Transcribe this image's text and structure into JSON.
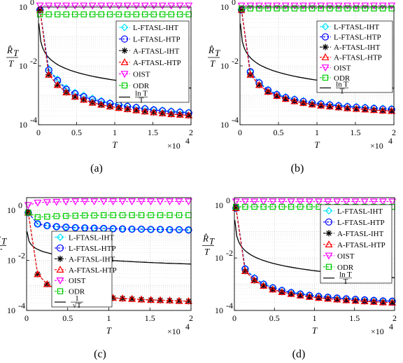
{
  "chart_data": [
    {
      "type": "line",
      "caption": "(a)",
      "xlabel": "T",
      "x_multiplier": "×10",
      "x_multiplier_exp": "4",
      "ylabel_top": "R̂",
      "ylabel_sub": "T",
      "ylabel_den": "T",
      "y_scale": "log",
      "xlim": [
        0,
        2
      ],
      "ylim_exp": [
        -4,
        0
      ],
      "xticks": [
        "0",
        "0.5",
        "1",
        "1.5",
        "2"
      ],
      "yticks": [
        {
          "base": "10",
          "exp": "0"
        },
        {
          "base": "10",
          "exp": "-2"
        },
        {
          "base": "10",
          "exp": "-4"
        }
      ],
      "grid": true,
      "legend": "top-right",
      "reference_label": {
        "num": "ln T",
        "den": "T"
      },
      "series": [
        {
          "name": "L-FTASL-IHT",
          "color": "#00e5ff",
          "marker": "diamond",
          "values_log10": [
            -0.1,
            -2.1,
            -2.45,
            -2.75,
            -2.9,
            -3.0,
            -3.1,
            -3.18,
            -3.25,
            -3.3,
            -3.35,
            -3.4,
            -3.44,
            -3.48,
            -3.5,
            -3.53,
            -3.55,
            -3.58
          ]
        },
        {
          "name": "L-FTASL-HTP",
          "color": "#0000ff",
          "marker": "circle",
          "values_log10": [
            -0.1,
            -2.15,
            -2.5,
            -2.8,
            -2.95,
            -3.05,
            -3.15,
            -3.22,
            -3.28,
            -3.33,
            -3.38,
            -3.42,
            -3.46,
            -3.5,
            -3.53,
            -3.56,
            -3.58,
            -3.6
          ]
        },
        {
          "name": "A-FTASL-IHT",
          "color": "#000000",
          "marker": "star",
          "values_log10": [
            -0.1,
            -2.3,
            -2.65,
            -2.9,
            -3.05,
            -3.15,
            -3.25,
            -3.32,
            -3.38,
            -3.43,
            -3.47,
            -3.51,
            -3.55,
            -3.58,
            -3.61,
            -3.64,
            -3.66,
            -3.68
          ]
        },
        {
          "name": "A-FTASL-HTP",
          "color": "#ff0000",
          "marker": "triangle",
          "values_log10": [
            -0.1,
            -2.3,
            -2.65,
            -2.9,
            -3.05,
            -3.15,
            -3.25,
            -3.32,
            -3.38,
            -3.43,
            -3.47,
            -3.51,
            -3.55,
            -3.58,
            -3.61,
            -3.64,
            -3.66,
            -3.68
          ]
        },
        {
          "name": "OIST",
          "color": "#ff00ff",
          "marker": "tri-down",
          "values_log10": [
            0.05,
            0.05,
            0.05,
            0.05,
            0.05,
            0.05,
            0.05,
            0.05,
            0.05,
            0.05,
            0.05,
            0.05,
            0.05,
            0.05,
            0.05,
            0.05,
            0.05,
            0.05
          ]
        },
        {
          "name": "ODR",
          "color": "#00cc00",
          "marker": "square",
          "values_log10": [
            -0.25,
            -0.25,
            -0.25,
            -0.25,
            -0.25,
            -0.25,
            -0.25,
            -0.25,
            -0.25,
            -0.25,
            -0.25,
            -0.25,
            -0.25,
            -0.25,
            -0.25,
            -0.25,
            -0.25,
            -0.25
          ]
        }
      ]
    },
    {
      "type": "line",
      "caption": "(b)",
      "xlabel": "T",
      "x_multiplier": "×10",
      "x_multiplier_exp": "4",
      "ylabel_top": "R̂",
      "ylabel_sub": "T",
      "ylabel_den": "T",
      "y_scale": "log",
      "xlim": [
        0,
        2
      ],
      "ylim_exp": [
        -4,
        0
      ],
      "xticks": [
        "0",
        "0.5",
        "1",
        "1.5",
        "2"
      ],
      "yticks": [
        {
          "base": "10",
          "exp": "0"
        },
        {
          "base": "10",
          "exp": "-2"
        },
        {
          "base": "10",
          "exp": "-4"
        }
      ],
      "grid": true,
      "legend": "top-right",
      "reference_label": {
        "num": "ln T",
        "den": "T"
      },
      "series": [
        {
          "name": "L-FTASL-IHT",
          "color": "#00e5ff",
          "marker": "diamond",
          "values_log10": [
            -0.1,
            -2.2,
            -2.55,
            -2.8,
            -2.95,
            -3.05,
            -3.12,
            -3.18,
            -3.23,
            -3.27,
            -3.3,
            -3.33,
            -3.36,
            -3.38,
            -3.4,
            -3.42,
            -3.44,
            -3.45
          ]
        },
        {
          "name": "L-FTASL-HTP",
          "color": "#0000ff",
          "marker": "circle",
          "values_log10": [
            -0.1,
            -2.2,
            -2.58,
            -2.83,
            -2.98,
            -3.08,
            -3.15,
            -3.21,
            -3.26,
            -3.3,
            -3.33,
            -3.36,
            -3.39,
            -3.41,
            -3.43,
            -3.45,
            -3.47,
            -3.48
          ]
        },
        {
          "name": "A-FTASL-IHT",
          "color": "#000000",
          "marker": "star",
          "values_log10": [
            -0.1,
            -2.3,
            -2.65,
            -2.88,
            -3.02,
            -3.12,
            -3.2,
            -3.26,
            -3.31,
            -3.35,
            -3.38,
            -3.41,
            -3.44,
            -3.46,
            -3.48,
            -3.5,
            -3.52,
            -3.53
          ]
        },
        {
          "name": "A-FTASL-HTP",
          "color": "#ff0000",
          "marker": "triangle",
          "values_log10": [
            -0.1,
            -2.3,
            -2.65,
            -2.88,
            -3.02,
            -3.12,
            -3.2,
            -3.26,
            -3.31,
            -3.35,
            -3.38,
            -3.41,
            -3.44,
            -3.46,
            -3.48,
            -3.5,
            -3.52,
            -3.53
          ]
        },
        {
          "name": "OIST",
          "color": "#ff00ff",
          "marker": "tri-down",
          "values_log10": [
            0.05,
            0.05,
            0.05,
            0.05,
            0.05,
            0.05,
            0.05,
            0.05,
            0.05,
            0.05,
            0.05,
            0.05,
            0.05,
            0.05,
            0.05,
            0.05,
            0.05,
            0.05
          ]
        },
        {
          "name": "ODR",
          "color": "#00cc00",
          "marker": "square",
          "values_log10": [
            -0.05,
            -0.05,
            -0.05,
            -0.05,
            -0.05,
            -0.05,
            -0.05,
            -0.05,
            -0.05,
            -0.05,
            -0.05,
            -0.05,
            -0.05,
            -0.05,
            -0.05,
            -0.05,
            -0.05,
            -0.05
          ]
        }
      ]
    },
    {
      "type": "line",
      "caption": "(c)",
      "xlabel": "T",
      "x_multiplier": "×10",
      "x_multiplier_exp": "4",
      "ylabel_top": "R̂",
      "ylabel_sub": "T",
      "ylabel_den": "T",
      "y_scale": "log",
      "xlim": [
        0,
        2
      ],
      "ylim_exp": [
        -4,
        0.5
      ],
      "xticks": [
        "0",
        "0.5",
        "1",
        "1.5",
        "2"
      ],
      "yticks": [
        {
          "base": "10",
          "exp": "0"
        },
        {
          "base": "10",
          "exp": "-2"
        },
        {
          "base": "10",
          "exp": "-4"
        }
      ],
      "grid": true,
      "legend": "left",
      "reference_label": {
        "num": "1",
        "den": "√T"
      },
      "series": [
        {
          "name": "L-FTASL-IHT",
          "color": "#00e5ff",
          "marker": "diamond",
          "values_log10": [
            -0.1,
            -0.55,
            -0.62,
            -0.66,
            -0.68,
            -0.7,
            -0.71,
            -0.72,
            -0.73,
            -0.74,
            -0.75,
            -0.76,
            -0.76,
            -0.77,
            -0.77,
            -0.78,
            -0.78,
            -0.79
          ]
        },
        {
          "name": "L-FTASL-HTP",
          "color": "#0000ff",
          "marker": "circle",
          "values_log10": [
            -0.1,
            -0.55,
            -0.62,
            -0.66,
            -0.68,
            -0.7,
            -0.71,
            -0.72,
            -0.73,
            -0.74,
            -0.75,
            -0.76,
            -0.76,
            -0.77,
            -0.77,
            -0.78,
            -0.78,
            -0.79
          ]
        },
        {
          "name": "A-FTASL-IHT",
          "color": "#000000",
          "marker": "star",
          "values_log10": [
            -0.1,
            -2.55,
            -2.95,
            -3.15,
            -3.28,
            -3.35,
            -3.4,
            -3.44,
            -3.47,
            -3.5,
            -3.52,
            -3.54,
            -3.56,
            -3.58,
            -3.59,
            -3.6,
            -3.62,
            -3.63
          ]
        },
        {
          "name": "A-FTASL-HTP",
          "color": "#ff0000",
          "marker": "triangle",
          "values_log10": [
            -0.1,
            -2.55,
            -2.95,
            -3.15,
            -3.28,
            -3.35,
            -3.4,
            -3.44,
            -3.47,
            -3.5,
            -3.52,
            -3.54,
            -3.56,
            -3.58,
            -3.59,
            -3.6,
            -3.62,
            -3.63
          ]
        },
        {
          "name": "OIST",
          "color": "#ff00ff",
          "marker": "tri-down",
          "values_log10": [
            0.2,
            0.3,
            0.32,
            0.33,
            0.34,
            0.35,
            0.35,
            0.35,
            0.35,
            0.35,
            0.35,
            0.35,
            0.35,
            0.35,
            0.35,
            0.35,
            0.35,
            0.35
          ]
        },
        {
          "name": "ODR",
          "color": "#00cc00",
          "marker": "square",
          "values_log10": [
            -0.1,
            -0.28,
            -0.26,
            -0.24,
            -0.23,
            -0.22,
            -0.21,
            -0.21,
            -0.2,
            -0.2,
            -0.2,
            -0.2,
            -0.2,
            -0.2,
            -0.2,
            -0.2,
            -0.2,
            -0.2
          ]
        }
      ]
    },
    {
      "type": "line",
      "caption": "(d)",
      "xlabel": "T",
      "x_multiplier": "×10",
      "x_multiplier_exp": "4",
      "ylabel_top": "R̂",
      "ylabel_sub": "T",
      "ylabel_den": "T",
      "y_scale": "log",
      "xlim": [
        0,
        2
      ],
      "ylim_exp": [
        -4,
        0.3
      ],
      "xticks": [
        "0",
        "0.5",
        "1",
        "1.5",
        "2"
      ],
      "yticks": [
        {
          "base": "10",
          "exp": "0"
        },
        {
          "base": "10",
          "exp": "-2"
        },
        {
          "base": "10",
          "exp": "-4"
        }
      ],
      "grid": true,
      "legend": "right",
      "reference_label": {
        "num": "ln T",
        "den": "T"
      },
      "series": [
        {
          "name": "L-FTASL-IHT",
          "color": "#00e5ff",
          "marker": "diamond",
          "values_log10": [
            -0.1,
            -2.4,
            -2.75,
            -2.98,
            -3.12,
            -3.22,
            -3.3,
            -3.36,
            -3.41,
            -3.45,
            -3.49,
            -3.52,
            -3.55,
            -3.57,
            -3.59,
            -3.61,
            -3.63,
            -3.64
          ]
        },
        {
          "name": "L-FTASL-HTP",
          "color": "#0000ff",
          "marker": "circle",
          "values_log10": [
            -0.1,
            -2.42,
            -2.78,
            -3.0,
            -3.14,
            -3.24,
            -3.32,
            -3.38,
            -3.43,
            -3.47,
            -3.5,
            -3.53,
            -3.56,
            -3.58,
            -3.6,
            -3.62,
            -3.64,
            -3.65
          ]
        },
        {
          "name": "A-FTASL-IHT",
          "color": "#000000",
          "marker": "star",
          "values_log10": [
            -0.1,
            -2.5,
            -2.85,
            -3.06,
            -3.2,
            -3.3,
            -3.37,
            -3.43,
            -3.48,
            -3.52,
            -3.55,
            -3.58,
            -3.61,
            -3.63,
            -3.65,
            -3.67,
            -3.69,
            -3.7
          ]
        },
        {
          "name": "A-FTASL-HTP",
          "color": "#ff0000",
          "marker": "triangle",
          "values_log10": [
            -0.1,
            -2.5,
            -2.85,
            -3.06,
            -3.2,
            -3.3,
            -3.37,
            -3.43,
            -3.48,
            -3.52,
            -3.55,
            -3.58,
            -3.61,
            -3.63,
            -3.65,
            -3.67,
            -3.69,
            -3.7
          ]
        },
        {
          "name": "OIST",
          "color": "#ff00ff",
          "marker": "tri-down",
          "values_log10": [
            0.15,
            0.15,
            0.15,
            0.15,
            0.15,
            0.15,
            0.15,
            0.15,
            0.15,
            0.15,
            0.15,
            0.15,
            0.15,
            0.15,
            0.15,
            0.15,
            0.15,
            0.15
          ]
        },
        {
          "name": "ODR",
          "color": "#00cc00",
          "marker": "square",
          "values_log10": [
            -0.05,
            -0.05,
            -0.05,
            -0.05,
            -0.05,
            -0.05,
            -0.05,
            -0.05,
            -0.05,
            -0.05,
            -0.05,
            -0.05,
            -0.05,
            -0.05,
            -0.05,
            -0.05,
            -0.05,
            -0.05
          ]
        }
      ]
    }
  ]
}
